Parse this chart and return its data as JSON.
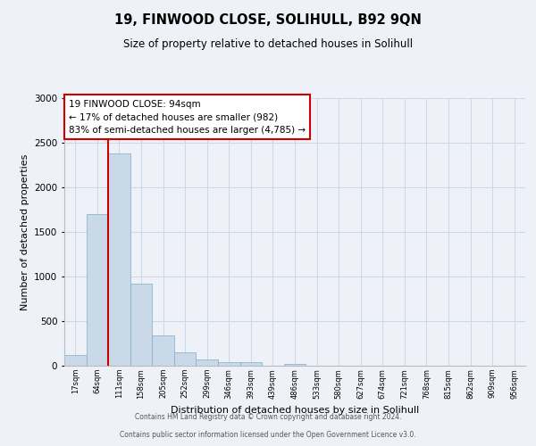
{
  "title": "19, FINWOOD CLOSE, SOLIHULL, B92 9QN",
  "subtitle": "Size of property relative to detached houses in Solihull",
  "xlabel": "Distribution of detached houses by size in Solihull",
  "ylabel": "Number of detached properties",
  "bin_labels": [
    "17sqm",
    "64sqm",
    "111sqm",
    "158sqm",
    "205sqm",
    "252sqm",
    "299sqm",
    "346sqm",
    "393sqm",
    "439sqm",
    "486sqm",
    "533sqm",
    "580sqm",
    "627sqm",
    "674sqm",
    "721sqm",
    "768sqm",
    "815sqm",
    "862sqm",
    "909sqm",
    "956sqm"
  ],
  "bar_values": [
    120,
    1700,
    2380,
    920,
    340,
    155,
    70,
    45,
    40,
    0,
    25,
    0,
    0,
    0,
    0,
    0,
    0,
    0,
    0,
    0,
    0
  ],
  "bar_color": "#c9d9e8",
  "bar_edge_color": "#7aaec8",
  "grid_color": "#d0d8e8",
  "background_color": "#eef2f8",
  "vline_color": "#cc0000",
  "ylim": [
    0,
    3000
  ],
  "yticks": [
    0,
    500,
    1000,
    1500,
    2000,
    2500,
    3000
  ],
  "annotation_line1": "19 FINWOOD CLOSE: 94sqm",
  "annotation_line2": "← 17% of detached houses are smaller (982)",
  "annotation_line3": "83% of semi-detached houses are larger (4,785) →",
  "annotation_box_color": "#ffffff",
  "annotation_box_edge": "#cc0000",
  "footer_line1": "Contains HM Land Registry data © Crown copyright and database right 2024.",
  "footer_line2": "Contains public sector information licensed under the Open Government Licence v3.0."
}
